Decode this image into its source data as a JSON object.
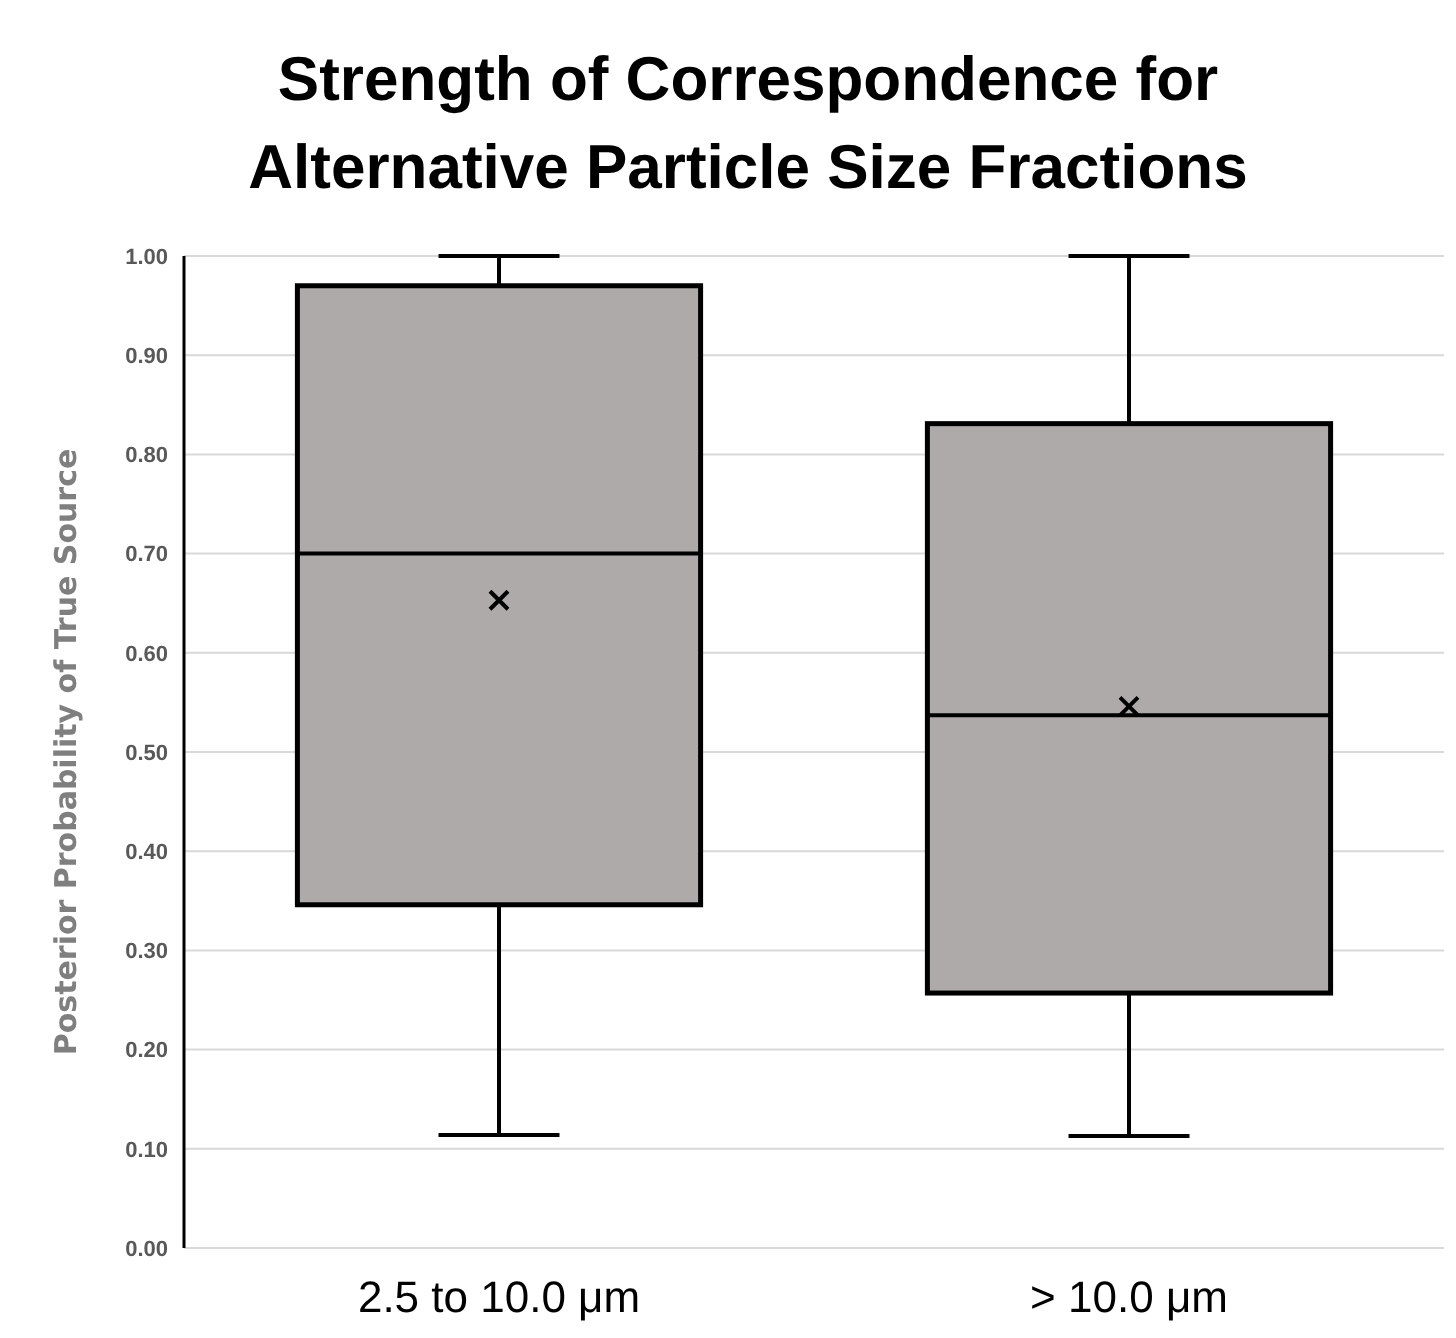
{
  "chart_data": {
    "type": "box",
    "title": "Strength of Correspondence for Alternative Particle Size Fractions",
    "ylabel": "Posterior Probability of True Source",
    "categories": [
      "2.5 to 10.0 μm",
      "> 10.0 μm"
    ],
    "color": "#aeaaaa",
    "marker": "cross",
    "grid": "y",
    "boxes": [
      {
        "low": 0.114,
        "q1": 0.346,
        "median": 0.7,
        "q3": 0.97,
        "high": 1.0,
        "mean": 0.653
      },
      {
        "low": 0.113,
        "q1": 0.257,
        "median": 0.537,
        "q3": 0.831,
        "high": 1.0,
        "mean": 0.546
      }
    ],
    "ylim": [
      0,
      1
    ],
    "yticks": [
      {
        "value": 0,
        "label": "0.00"
      },
      {
        "value": 0.1,
        "label": "0.10"
      },
      {
        "value": 0.2,
        "label": "0.20"
      },
      {
        "value": 0.3,
        "label": "0.30"
      },
      {
        "value": 0.4,
        "label": "0.40"
      },
      {
        "value": 0.5,
        "label": "0.50"
      },
      {
        "value": 0.6,
        "label": "0.60"
      },
      {
        "value": 0.7,
        "label": "0.70"
      },
      {
        "value": 0.8,
        "label": "0.80"
      },
      {
        "value": 0.9,
        "label": "0.90"
      },
      {
        "value": 1,
        "label": "1.00"
      }
    ]
  }
}
